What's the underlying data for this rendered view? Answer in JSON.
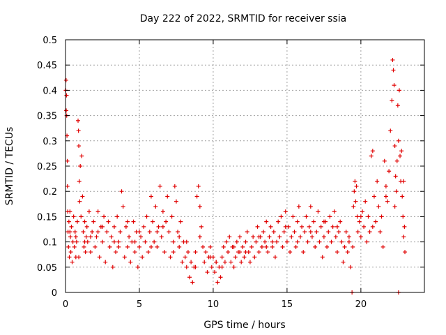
{
  "chart_data": {
    "type": "scatter",
    "title": "Day 222 of 2022, SRMTID for receiver ssia",
    "xlabel": "GPS time / hours",
    "ylabel": "SRMTID / TECUs",
    "xlim": [
      0,
      24.3
    ],
    "ylim": [
      0,
      0.5
    ],
    "x_ticks": [
      0,
      5,
      10,
      15,
      20
    ],
    "x_tick_labels": [
      "0",
      "5",
      "10",
      "15",
      "20"
    ],
    "y_ticks": [
      0,
      0.05,
      0.1,
      0.15,
      0.2,
      0.25,
      0.3,
      0.35,
      0.4,
      0.45,
      0.5
    ],
    "y_tick_labels": [
      "0",
      "0.05",
      "0.1",
      "0.15",
      "0.2",
      "0.25",
      "0.3",
      "0.35",
      "0.4",
      "0.45",
      "0.5"
    ],
    "grid": true,
    "marker": "+",
    "color": "#e00000",
    "series": [
      {
        "name": "SRMTID",
        "points": [
          [
            0.02,
            0.4
          ],
          [
            0.04,
            0.42
          ],
          [
            0.05,
            0.36
          ],
          [
            0.07,
            0.39
          ],
          [
            0.08,
            0.35
          ],
          [
            0.1,
            0.31
          ],
          [
            0.12,
            0.26
          ],
          [
            0.13,
            0.21
          ],
          [
            0.15,
            0.16
          ],
          [
            0.17,
            0.12
          ],
          [
            0.2,
            0.09
          ],
          [
            0.23,
            0.14
          ],
          [
            0.26,
            0.07
          ],
          [
            0.3,
            0.16
          ],
          [
            0.33,
            0.11
          ],
          [
            0.36,
            0.08
          ],
          [
            0.4,
            0.13
          ],
          [
            0.45,
            0.06
          ],
          [
            0.5,
            0.1
          ],
          [
            0.55,
            0.15
          ],
          [
            0.6,
            0.09
          ],
          [
            0.65,
            0.12
          ],
          [
            0.7,
            0.07
          ],
          [
            0.75,
            0.1
          ],
          [
            0.8,
            0.14
          ],
          [
            0.85,
            0.34
          ],
          [
            0.88,
            0.32
          ],
          [
            0.9,
            0.29
          ],
          [
            0.93,
            0.22
          ],
          [
            0.96,
            0.18
          ],
          [
            1.0,
            0.25
          ],
          [
            1.05,
            0.15
          ],
          [
            1.1,
            0.27
          ],
          [
            1.15,
            0.19
          ],
          [
            1.2,
            0.12
          ],
          [
            1.25,
            0.09
          ],
          [
            1.3,
            0.14
          ],
          [
            1.35,
            0.08
          ],
          [
            1.4,
            0.11
          ],
          [
            1.45,
            0.13
          ],
          [
            1.5,
            0.1
          ],
          [
            1.6,
            0.16
          ],
          [
            1.7,
            0.08
          ],
          [
            1.8,
            0.12
          ],
          [
            1.9,
            0.14
          ],
          [
            2.0,
            0.09
          ],
          [
            2.1,
            0.11
          ],
          [
            2.2,
            0.16
          ],
          [
            2.3,
            0.07
          ],
          [
            2.4,
            0.13
          ],
          [
            2.5,
            0.1
          ],
          [
            2.6,
            0.15
          ],
          [
            2.7,
            0.06
          ],
          [
            2.8,
            0.12
          ],
          [
            2.9,
            0.14
          ],
          [
            3.0,
            0.09
          ],
          [
            3.1,
            0.11
          ],
          [
            3.2,
            0.05
          ],
          [
            3.3,
            0.13
          ],
          [
            3.4,
            0.08
          ],
          [
            3.5,
            0.15
          ],
          [
            3.6,
            0.1
          ],
          [
            3.7,
            0.12
          ],
          [
            3.8,
            0.2
          ],
          [
            3.9,
            0.17
          ],
          [
            4.0,
            0.07
          ],
          [
            4.1,
            0.13
          ],
          [
            4.2,
            0.09
          ],
          [
            4.3,
            0.11
          ],
          [
            4.4,
            0.06
          ],
          [
            4.5,
            0.1
          ],
          [
            4.6,
            0.14
          ],
          [
            4.7,
            0.08
          ],
          [
            4.8,
            0.12
          ],
          [
            4.9,
            0.05
          ],
          [
            5.0,
            0.09
          ],
          [
            5.1,
            0.11
          ],
          [
            5.2,
            0.07
          ],
          [
            5.3,
            0.13
          ],
          [
            5.4,
            0.1
          ],
          [
            5.5,
            0.15
          ],
          [
            5.6,
            0.08
          ],
          [
            5.7,
            0.12
          ],
          [
            5.8,
            0.19
          ],
          [
            5.9,
            0.14
          ],
          [
            6.0,
            0.1
          ],
          [
            6.1,
            0.17
          ],
          [
            6.2,
            0.09
          ],
          [
            6.3,
            0.13
          ],
          [
            6.4,
            0.21
          ],
          [
            6.5,
            0.11
          ],
          [
            6.6,
            0.16
          ],
          [
            6.7,
            0.08
          ],
          [
            6.8,
            0.14
          ],
          [
            6.9,
            0.19
          ],
          [
            7.0,
            0.12
          ],
          [
            7.1,
            0.07
          ],
          [
            7.2,
            0.15
          ],
          [
            7.3,
            0.1
          ],
          [
            7.4,
            0.21
          ],
          [
            7.5,
            0.18
          ],
          [
            7.6,
            0.12
          ],
          [
            7.7,
            0.09
          ],
          [
            7.8,
            0.14
          ],
          [
            7.9,
            0.06
          ],
          [
            8.0,
            0.1
          ],
          [
            8.1,
            0.07
          ],
          [
            8.2,
            0.05
          ],
          [
            8.3,
            0.08
          ],
          [
            8.4,
            0.03
          ],
          [
            8.5,
            0.06
          ],
          [
            8.6,
            0.02
          ],
          [
            8.7,
            0.05
          ],
          [
            8.8,
            0.08
          ],
          [
            8.9,
            0.19
          ],
          [
            9.0,
            0.21
          ],
          [
            9.1,
            0.17
          ],
          [
            9.2,
            0.13
          ],
          [
            9.3,
            0.09
          ],
          [
            9.4,
            0.06
          ],
          [
            9.5,
            0.08
          ],
          [
            9.6,
            0.04
          ],
          [
            9.7,
            0.07
          ],
          [
            9.8,
            0.09
          ],
          [
            9.9,
            0.05
          ],
          [
            10.0,
            0.07
          ],
          [
            10.1,
            0.04
          ],
          [
            10.2,
            0.06
          ],
          [
            10.3,
            0.02
          ],
          [
            10.4,
            0.05
          ],
          [
            10.5,
            0.03
          ],
          [
            10.6,
            0.07
          ],
          [
            10.7,
            0.09
          ],
          [
            10.8,
            0.06
          ],
          [
            10.9,
            0.1
          ],
          [
            11.0,
            0.08
          ],
          [
            11.1,
            0.11
          ],
          [
            11.2,
            0.06
          ],
          [
            11.3,
            0.09
          ],
          [
            11.4,
            0.05
          ],
          [
            11.5,
            0.07
          ],
          [
            11.6,
            0.1
          ],
          [
            11.7,
            0.08
          ],
          [
            11.8,
            0.11
          ],
          [
            11.9,
            0.06
          ],
          [
            12.0,
            0.09
          ],
          [
            12.1,
            0.07
          ],
          [
            12.2,
            0.1
          ],
          [
            12.3,
            0.12
          ],
          [
            12.4,
            0.08
          ],
          [
            12.5,
            0.06
          ],
          [
            12.6,
            0.09
          ],
          [
            12.7,
            0.11
          ],
          [
            12.8,
            0.07
          ],
          [
            12.9,
            0.1
          ],
          [
            13.0,
            0.13
          ],
          [
            13.1,
            0.08
          ],
          [
            13.2,
            0.11
          ],
          [
            13.3,
            0.09
          ],
          [
            13.4,
            0.12
          ],
          [
            13.5,
            0.1
          ],
          [
            13.6,
            0.14
          ],
          [
            13.7,
            0.08
          ],
          [
            13.8,
            0.11
          ],
          [
            13.9,
            0.13
          ],
          [
            14.0,
            0.09
          ],
          [
            14.1,
            0.12
          ],
          [
            14.2,
            0.07
          ],
          [
            14.3,
            0.1
          ],
          [
            14.4,
            0.14
          ],
          [
            14.5,
            0.11
          ],
          [
            14.6,
            0.15
          ],
          [
            14.7,
            0.09
          ],
          [
            14.8,
            0.12
          ],
          [
            14.9,
            0.16
          ],
          [
            15.0,
            0.1
          ],
          [
            15.1,
            0.13
          ],
          [
            15.2,
            0.08
          ],
          [
            15.3,
            0.11
          ],
          [
            15.4,
            0.15
          ],
          [
            15.5,
            0.12
          ],
          [
            15.6,
            0.09
          ],
          [
            15.7,
            0.14
          ],
          [
            15.8,
            0.17
          ],
          [
            15.9,
            0.11
          ],
          [
            16.0,
            0.13
          ],
          [
            16.1,
            0.08
          ],
          [
            16.2,
            0.12
          ],
          [
            16.3,
            0.15
          ],
          [
            16.4,
            0.1
          ],
          [
            16.5,
            0.13
          ],
          [
            16.6,
            0.17
          ],
          [
            16.7,
            0.11
          ],
          [
            16.8,
            0.14
          ],
          [
            16.9,
            0.09
          ],
          [
            17.0,
            0.12
          ],
          [
            17.1,
            0.16
          ],
          [
            17.2,
            0.1
          ],
          [
            17.3,
            0.13
          ],
          [
            17.4,
            0.07
          ],
          [
            17.5,
            0.11
          ],
          [
            17.6,
            0.14
          ],
          [
            17.7,
            0.09
          ],
          [
            17.8,
            0.12
          ],
          [
            17.9,
            0.15
          ],
          [
            18.0,
            0.1
          ],
          [
            18.1,
            0.13
          ],
          [
            18.2,
            0.16
          ],
          [
            18.3,
            0.11
          ],
          [
            18.4,
            0.08
          ],
          [
            18.5,
            0.12
          ],
          [
            18.6,
            0.14
          ],
          [
            18.7,
            0.1
          ],
          [
            18.8,
            0.06
          ],
          [
            18.9,
            0.09
          ],
          [
            19.0,
            0.12
          ],
          [
            19.1,
            0.08
          ],
          [
            19.2,
            0.11
          ],
          [
            19.3,
            0.05
          ],
          [
            19.4,
            0.0
          ],
          [
            19.45,
            0.09
          ],
          [
            19.5,
            0.17
          ],
          [
            19.55,
            0.2
          ],
          [
            19.6,
            0.22
          ],
          [
            19.65,
            0.18
          ],
          [
            19.7,
            0.21
          ],
          [
            19.75,
            0.15
          ],
          [
            19.8,
            0.12
          ],
          [
            19.9,
            0.14
          ],
          [
            20.0,
            0.11
          ],
          [
            20.1,
            0.16
          ],
          [
            20.2,
            0.13
          ],
          [
            20.3,
            0.18
          ],
          [
            20.4,
            0.1
          ],
          [
            20.5,
            0.15
          ],
          [
            20.6,
            0.12
          ],
          [
            20.7,
            0.27
          ],
          [
            20.8,
            0.28
          ],
          [
            20.9,
            0.19
          ],
          [
            21.0,
            0.14
          ],
          [
            21.1,
            0.22
          ],
          [
            21.2,
            0.17
          ],
          [
            21.3,
            0.12
          ],
          [
            21.4,
            0.15
          ],
          [
            21.5,
            0.09
          ],
          [
            21.6,
            0.26
          ],
          [
            21.7,
            0.21
          ],
          [
            21.8,
            0.18
          ],
          [
            21.9,
            0.24
          ],
          [
            22.0,
            0.32
          ],
          [
            22.1,
            0.38
          ],
          [
            22.15,
            0.46
          ],
          [
            22.2,
            0.44
          ],
          [
            22.25,
            0.41
          ],
          [
            22.3,
            0.29
          ],
          [
            22.35,
            0.23
          ],
          [
            22.4,
            0.2
          ],
          [
            22.45,
            0.26
          ],
          [
            22.5,
            0.37
          ],
          [
            22.55,
            0.3
          ],
          [
            22.6,
            0.4
          ],
          [
            22.65,
            0.27
          ],
          [
            22.7,
            0.22
          ],
          [
            22.75,
            0.28
          ],
          [
            22.8,
            0.19
          ],
          [
            22.85,
            0.15
          ],
          [
            22.9,
            0.11
          ],
          [
            22.95,
            0.13
          ],
          [
            22.55,
            0.0
          ],
          [
            22.98,
            0.08
          ],
          [
            0.3,
            0.12
          ],
          [
            0.9,
            0.07
          ],
          [
            1.7,
            0.11
          ],
          [
            2.5,
            0.13
          ],
          [
            3.3,
            0.1
          ],
          [
            4.2,
            0.14
          ],
          [
            5.0,
            0.12
          ],
          [
            5.8,
            0.09
          ],
          [
            6.6,
            0.13
          ],
          [
            7.3,
            0.08
          ],
          [
            8.2,
            0.1
          ],
          [
            9.1,
            0.11
          ],
          [
            9.8,
            0.07
          ],
          [
            10.6,
            0.05
          ],
          [
            11.4,
            0.09
          ],
          [
            12.2,
            0.08
          ],
          [
            13.1,
            0.11
          ],
          [
            14.0,
            0.1
          ],
          [
            14.9,
            0.13
          ],
          [
            15.7,
            0.1
          ],
          [
            16.6,
            0.12
          ],
          [
            17.5,
            0.14
          ],
          [
            18.4,
            0.13
          ],
          [
            19.2,
            0.1
          ],
          [
            20.0,
            0.15
          ],
          [
            20.8,
            0.13
          ],
          [
            21.7,
            0.19
          ],
          [
            22.3,
            0.17
          ],
          [
            22.9,
            0.22
          ],
          [
            0.7,
            0.11
          ],
          [
            1.3,
            0.1
          ],
          [
            2.2,
            0.12
          ],
          [
            3.6,
            0.09
          ],
          [
            4.7,
            0.1
          ],
          [
            6.2,
            0.12
          ],
          [
            7.7,
            0.11
          ],
          [
            8.8,
            0.05
          ],
          [
            10.2,
            0.06
          ],
          [
            11.8,
            0.08
          ],
          [
            13.6,
            0.09
          ]
        ]
      }
    ]
  }
}
